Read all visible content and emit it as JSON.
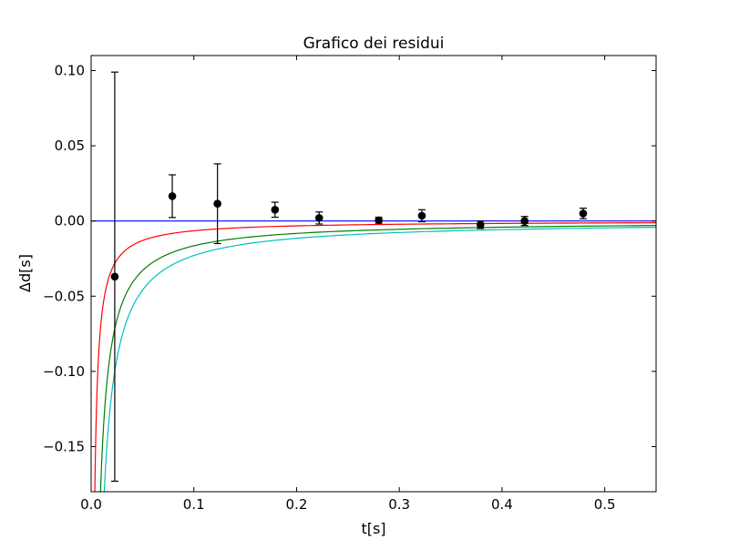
{
  "chart_data": {
    "type": "scatter",
    "title": "Grafico dei residui",
    "xlabel": "t[s]",
    "ylabel": "Δd[s]",
    "xlim": [
      0.0,
      0.55
    ],
    "ylim": [
      -0.18,
      0.11
    ],
    "grid": false,
    "legend": "none",
    "x_ticks": [
      {
        "value": 0.0,
        "label": "0.0"
      },
      {
        "value": 0.1,
        "label": "0.1"
      },
      {
        "value": 0.2,
        "label": "0.2"
      },
      {
        "value": 0.3,
        "label": "0.3"
      },
      {
        "value": 0.4,
        "label": "0.4"
      },
      {
        "value": 0.5,
        "label": "0.5"
      }
    ],
    "y_ticks": [
      {
        "value": 0.1,
        "label": "0.10"
      },
      {
        "value": 0.05,
        "label": "0.05"
      },
      {
        "value": 0.0,
        "label": "0.00"
      },
      {
        "value": -0.05,
        "label": "−0.05"
      },
      {
        "value": -0.1,
        "label": "−0.10"
      },
      {
        "value": -0.15,
        "label": "−0.15"
      }
    ],
    "points": [
      {
        "x": 0.023,
        "y": -0.037,
        "err": 0.136
      },
      {
        "x": 0.079,
        "y": 0.0165,
        "err": 0.0142
      },
      {
        "x": 0.123,
        "y": 0.0115,
        "err": 0.0265
      },
      {
        "x": 0.179,
        "y": 0.0075,
        "err": 0.005
      },
      {
        "x": 0.222,
        "y": 0.002,
        "err": 0.004
      },
      {
        "x": 0.28,
        "y": 0.0005,
        "err": 0.002
      },
      {
        "x": 0.322,
        "y": 0.0035,
        "err": 0.004
      },
      {
        "x": 0.379,
        "y": -0.0025,
        "err": 0.0025
      },
      {
        "x": 0.422,
        "y": 0.0,
        "err": 0.003
      },
      {
        "x": 0.479,
        "y": 0.005,
        "err": 0.0035
      }
    ],
    "curves": [
      {
        "color": "#0000ff",
        "kind": "constant",
        "value": 0.0
      },
      {
        "color": "#ff0000",
        "kind": "inverse",
        "coefficient": -0.00065
      },
      {
        "color": "#008000",
        "kind": "inverse",
        "coefficient": -0.00165
      },
      {
        "color": "#00bfbf",
        "kind": "inverse",
        "coefficient": -0.0023
      }
    ],
    "colors": {
      "points": "#000000",
      "axes": "#000000"
    }
  }
}
